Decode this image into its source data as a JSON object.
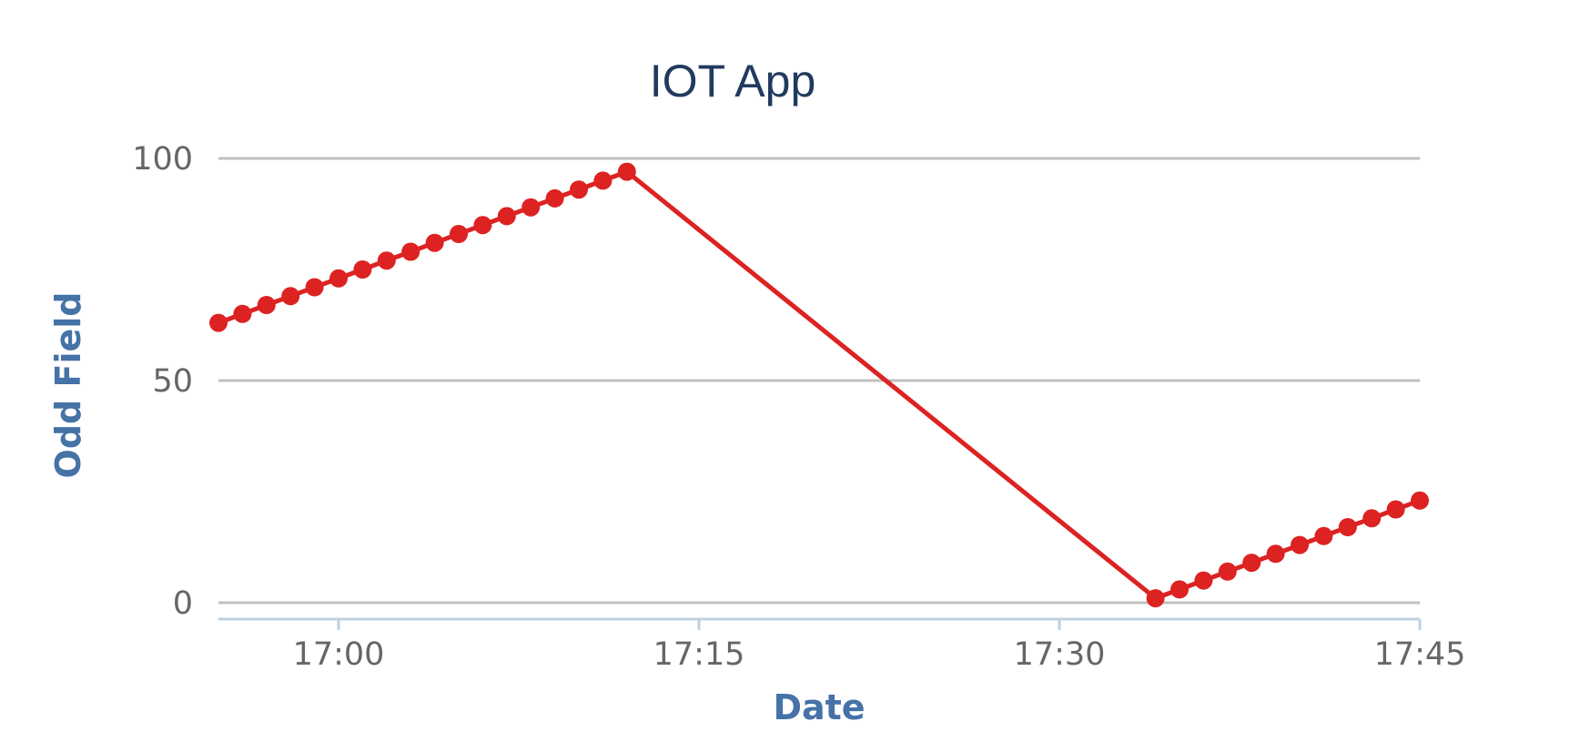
{
  "chart_data": {
    "type": "line",
    "title": "IOT App",
    "xlabel": "Date",
    "ylabel": "Odd Field",
    "ylim": [
      0,
      100
    ],
    "yticks": [
      0,
      50,
      100
    ],
    "xlim": [
      "16:55",
      "17:45"
    ],
    "xticks": [
      "17:00",
      "17:15",
      "17:30",
      "17:45"
    ],
    "grid": true,
    "legend": "none",
    "colors": {
      "series": "#dd2222"
    },
    "series": [
      {
        "x": [
          "16:55",
          "16:56",
          "16:57",
          "16:58",
          "16:59",
          "17:00",
          "17:01",
          "17:02",
          "17:03",
          "17:04",
          "17:05",
          "17:06",
          "17:07",
          "17:08",
          "17:09",
          "17:10",
          "17:11",
          "17:12",
          "17:34",
          "17:35",
          "17:36",
          "17:37",
          "17:38",
          "17:39",
          "17:40",
          "17:41",
          "17:42",
          "17:43",
          "17:44",
          "17:45"
        ],
        "values": [
          63,
          65,
          67,
          69,
          71,
          73,
          75,
          77,
          79,
          81,
          83,
          85,
          87,
          89,
          91,
          93,
          95,
          97,
          1,
          3,
          5,
          7,
          9,
          11,
          13,
          15,
          17,
          19,
          21,
          23
        ]
      }
    ]
  }
}
